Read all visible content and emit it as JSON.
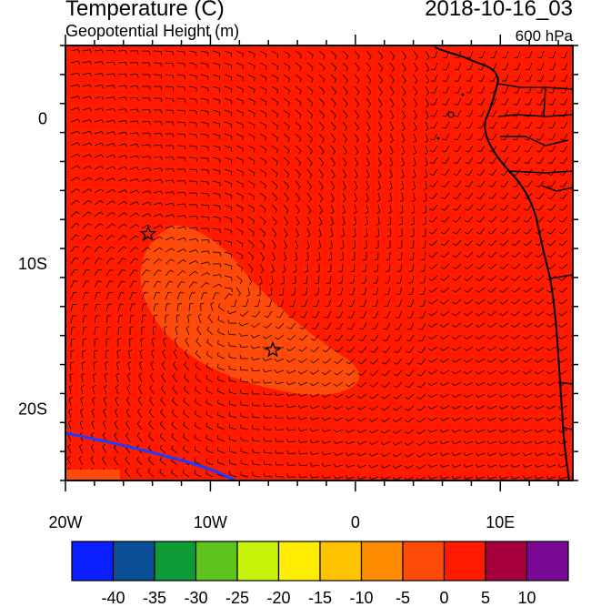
{
  "header": {
    "title": "Temperature (C)",
    "subtitle": "Geopotential Height (m)",
    "datetime": "2018-10-16_03",
    "level": "600 hPa"
  },
  "map": {
    "lon_range": [
      -20,
      15
    ],
    "lat_range": [
      -25,
      5
    ],
    "x_ticks": [
      {
        "value": -20,
        "label": "20W"
      },
      {
        "value": -10,
        "label": "10W"
      },
      {
        "value": 0,
        "label": "0"
      },
      {
        "value": 10,
        "label": "10E"
      }
    ],
    "y_ticks": [
      {
        "value": 0,
        "label": "0"
      },
      {
        "value": -10,
        "label": "10S"
      },
      {
        "value": -20,
        "label": "20S"
      }
    ],
    "background_color": "#ff1a00",
    "markers": [
      {
        "type": "star",
        "lon": -14.3,
        "lat": -8.0
      },
      {
        "type": "star",
        "lon": -5.7,
        "lat": -16.0
      }
    ]
  },
  "colorbar": {
    "labels": [
      "-40",
      "-35",
      "-30",
      "-25",
      "-20",
      "-15",
      "-10",
      "-5",
      "0",
      "5",
      "10"
    ],
    "colors": [
      "#0a1eff",
      "#0a4f96",
      "#0d9a37",
      "#5fc31e",
      "#c7f20a",
      "#ffec00",
      "#ffc300",
      "#ff8c00",
      "#ff4b0a",
      "#ff1a00",
      "#a6003c",
      "#7a0a96"
    ]
  }
}
